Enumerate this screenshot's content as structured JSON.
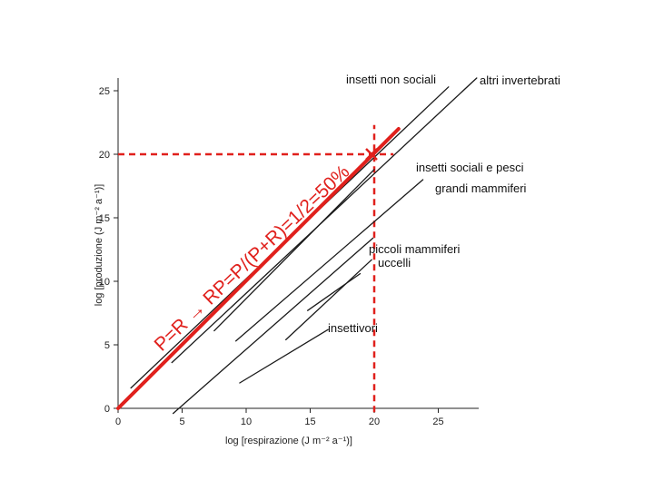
{
  "chart_data": {
    "type": "line",
    "title": "",
    "xlabel": "log [respirazione (J m⁻² a⁻¹)]",
    "ylabel": "log [produzione (J m⁻² a⁻¹)]",
    "xlim": [
      0,
      28
    ],
    "ylim": [
      0,
      26
    ],
    "xticks": [
      0,
      5,
      10,
      15,
      20,
      25
    ],
    "yticks": [
      0,
      5,
      10,
      15,
      20,
      25
    ],
    "grid": false,
    "series": [
      {
        "name": "insetti non sociali",
        "points": [
          [
            1.0,
            1.6
          ],
          [
            25.8,
            25.3
          ]
        ]
      },
      {
        "name": "altri invertebrati",
        "points": [
          [
            4.2,
            3.6
          ],
          [
            28.0,
            26.0
          ]
        ]
      },
      {
        "name": "insetti sociali e pesci",
        "points": [
          [
            7.5,
            6.1
          ],
          [
            20.0,
            18.8
          ]
        ]
      },
      {
        "name": "grandi mammiferi",
        "points": [
          [
            9.2,
            5.3
          ],
          [
            23.8,
            18.0
          ]
        ]
      },
      {
        "name": "piccoli mammiferi",
        "points": [
          [
            4.3,
            -0.4
          ],
          [
            19.9,
            13.4
          ]
        ]
      },
      {
        "name": "uccelli",
        "points": [
          [
            13.1,
            5.4
          ],
          [
            19.8,
            11.7
          ]
        ]
      },
      {
        "name": "insettivori",
        "points": [
          [
            9.5,
            2.0
          ],
          [
            16.4,
            6.2
          ]
        ]
      },
      {
        "name": "insettivori",
        "points": [
          [
            14.8,
            7.7
          ],
          [
            18.9,
            10.6
          ]
        ]
      },
      {
        "name": "P=R",
        "color": "#e0201c",
        "points": [
          [
            0.0,
            0.0
          ],
          [
            21.9,
            22.0
          ]
        ]
      }
    ],
    "reference_lines": [
      {
        "orientation": "horizontal",
        "value": 20,
        "color": "#e0201c",
        "style": "dashed"
      },
      {
        "orientation": "vertical",
        "value": 20,
        "color": "#e0201c",
        "style": "dashed"
      }
    ],
    "annotation": {
      "text": "P=R → RP=P/(P+R)=1/2=50%",
      "color": "#e0201c"
    }
  }
}
